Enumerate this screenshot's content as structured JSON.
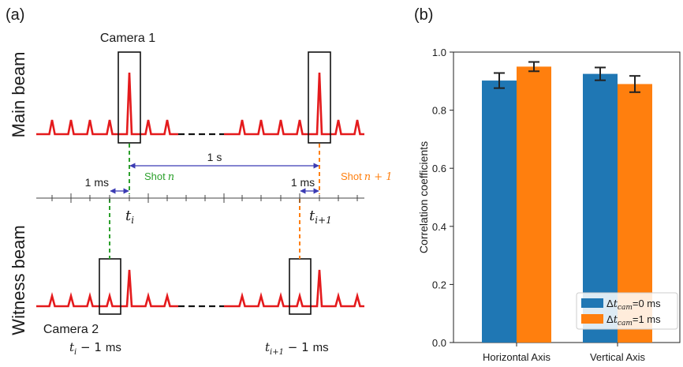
{
  "panel_a": {
    "label": "(a)",
    "main_beam_label": "Main beam",
    "witness_beam_label": "Witness beam",
    "camera1_label": "Camera 1",
    "camera2_label": "Camera 2",
    "interval_1s": "1 s",
    "interval_1ms_left": "1 ms",
    "interval_1ms_right": "1 ms",
    "shot_n_word": "Shot",
    "shot_n_math": "n",
    "shot_n1_word": "Shot",
    "shot_n1_math": "n + 1",
    "t_i": "t",
    "t_i_sub": "i",
    "t_i1": "t",
    "t_i1_sub": "i+1",
    "t_i_minus": "t",
    "t_i_minus_sub": "i",
    "t_i_minus_rest": " − 1",
    "t_i_minus_unit": "ms",
    "t_i1_minus": "t",
    "t_i1_minus_sub": "i+1",
    "t_i1_minus_rest": " − 1",
    "t_i1_minus_unit": "ms",
    "colors": {
      "pulse": "#e41a1c",
      "shot_n": "#2ca02c",
      "shot_n1": "#ff7f0e",
      "interval": "#3b3bb3",
      "axis": "#444444"
    }
  },
  "panel_b": {
    "label": "(b)"
  },
  "chart_data": {
    "type": "bar",
    "categories": [
      "Horizontal Axis",
      "Vertical Axis"
    ],
    "series": [
      {
        "name": "Δt_cam=0 ms",
        "legend_prefix": "Δ",
        "legend_t": "t",
        "legend_sub": "cam",
        "legend_suffix": "=0 ms",
        "color": "#1f77b4",
        "values": [
          0.902,
          0.925
        ],
        "errors": [
          0.026,
          0.022
        ]
      },
      {
        "name": "Δt_cam=1 ms",
        "legend_prefix": "Δ",
        "legend_t": "t",
        "legend_sub": "cam",
        "legend_suffix": "=1 ms",
        "color": "#ff7f0e",
        "values": [
          0.95,
          0.89
        ],
        "errors": [
          0.016,
          0.028
        ]
      }
    ],
    "ylabel": "Correlation coefficients",
    "xlabel": "",
    "ylim": [
      0.0,
      1.0
    ],
    "yticks": [
      "0.0",
      "0.2",
      "0.4",
      "0.6",
      "0.8",
      "1.0"
    ],
    "legend_position": "lower-right",
    "grid": false
  }
}
